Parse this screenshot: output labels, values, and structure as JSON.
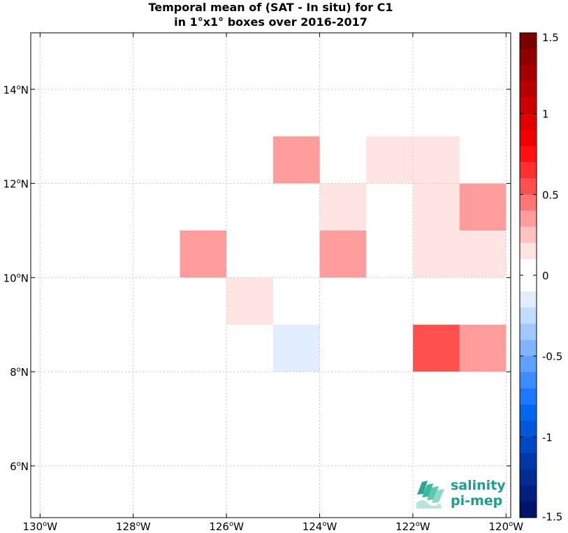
{
  "chart_data": {
    "type": "heatmap",
    "title_lines": [
      "Temporal mean of (SAT - In situ) for C1",
      "in 1°x1° boxes over 2016-2017"
    ],
    "xlim": [
      -130.2,
      -119.9
    ],
    "ylim": [
      4.9,
      15.2
    ],
    "x_ticks": [
      -130,
      -128,
      -126,
      -124,
      -122,
      -120
    ],
    "x_tick_labels": [
      "130°W",
      "128°W",
      "126°W",
      "124°W",
      "122°W",
      "120°W"
    ],
    "y_ticks": [
      6,
      8,
      10,
      12,
      14
    ],
    "y_tick_labels": [
      "6°N",
      "8°N",
      "10°N",
      "12°N",
      "14°N"
    ],
    "grid": true,
    "cell_size_deg": 1,
    "cells": [
      {
        "lon_min": -125,
        "lat_min": 12,
        "value": 0.3
      },
      {
        "lon_min": -123,
        "lat_min": 12,
        "value": 0.15
      },
      {
        "lon_min": -122,
        "lat_min": 12,
        "value": 0.15
      },
      {
        "lon_min": -124,
        "lat_min": 11,
        "value": 0.15
      },
      {
        "lon_min": -122,
        "lat_min": 11,
        "value": 0.15
      },
      {
        "lon_min": -121,
        "lat_min": 11,
        "value": 0.3
      },
      {
        "lon_min": -127,
        "lat_min": 10,
        "value": 0.3
      },
      {
        "lon_min": -124,
        "lat_min": 10,
        "value": 0.3
      },
      {
        "lon_min": -122,
        "lat_min": 10,
        "value": 0.15
      },
      {
        "lon_min": -121,
        "lat_min": 10,
        "value": 0.15
      },
      {
        "lon_min": -126,
        "lat_min": 9,
        "value": 0.15
      },
      {
        "lon_min": -125,
        "lat_min": 8,
        "value": -0.15
      },
      {
        "lon_min": -122,
        "lat_min": 8,
        "value": 0.6
      },
      {
        "lon_min": -121,
        "lat_min": 8,
        "value": 0.3
      }
    ],
    "colorbar": {
      "range": [
        -1.5,
        1.5
      ],
      "tick_values": [
        1.5,
        1,
        0.5,
        0,
        -0.5,
        -1,
        -1.5
      ],
      "tick_labels": [
        "1.5",
        "1",
        "0.5",
        "0",
        "-0.5",
        "-1",
        "-1.5"
      ],
      "colors": [
        "#7a0000",
        "#8f0000",
        "#a40000",
        "#b80000",
        "#cc0000",
        "#e00000",
        "#f00000",
        "#ff1010",
        "#ff3030",
        "#ff5050",
        "#ff7676",
        "#ff9c9c",
        "#ffc2c2",
        "#ffe4e4",
        "#ffffff",
        "#ffffff",
        "#e2eeff",
        "#c2dcff",
        "#a2c8ff",
        "#80b4ff",
        "#5ea0ff",
        "#3c8cff",
        "#1c78ff",
        "#0068f0",
        "#0058d8",
        "#0048c0",
        "#0038a8",
        "#002c94",
        "#002080",
        "#00146c"
      ]
    }
  },
  "logo": {
    "line1": "salinity",
    "line2": "pi-mep",
    "color": "#1e9e8c"
  }
}
